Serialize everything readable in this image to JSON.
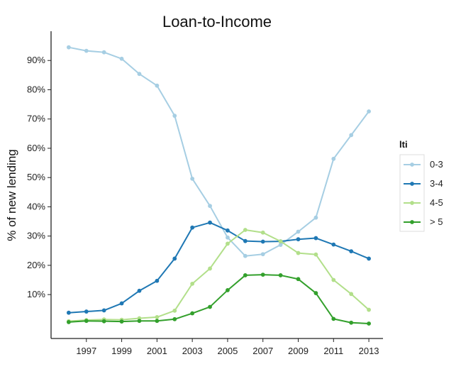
{
  "chart_data": {
    "type": "line",
    "title": "Loan-to-Income",
    "xlabel": "",
    "ylabel": "% of new lending",
    "x": [
      1996,
      1997,
      1998,
      1999,
      2000,
      2001,
      2002,
      2003,
      2004,
      2005,
      2006,
      2007,
      2008,
      2009,
      2010,
      2011,
      2012,
      2013
    ],
    "xlim": [
      1995,
      2013.8
    ],
    "ylim": [
      -5,
      100
    ],
    "x_ticks": [
      1997,
      1999,
      2001,
      2003,
      2005,
      2007,
      2009,
      2011,
      2013
    ],
    "x_tick_labels": [
      "1997",
      "1999",
      "2001",
      "2003",
      "2005",
      "2007",
      "2009",
      "2011",
      "2013"
    ],
    "y_ticks": [
      10,
      20,
      30,
      40,
      50,
      60,
      70,
      80,
      90
    ],
    "y_tick_labels": [
      "10%",
      "20%",
      "30%",
      "40%",
      "50%",
      "60%",
      "70%",
      "80%",
      "90%"
    ],
    "grid": false,
    "legend": {
      "title": "lti",
      "position": "right"
    },
    "series": [
      {
        "name": "0-3",
        "color": "#a6cee3",
        "values": [
          94.5,
          93.3,
          92.8,
          90.6,
          85.4,
          81.4,
          71.1,
          49.6,
          40.3,
          29.5,
          23.2,
          23.8,
          27.0,
          31.5,
          36.3,
          56.4,
          64.5,
          72.6
        ]
      },
      {
        "name": "3-4",
        "color": "#1f78b4",
        "values": [
          3.8,
          4.2,
          4.6,
          7.0,
          11.3,
          14.7,
          22.3,
          32.9,
          34.6,
          31.9,
          28.3,
          28.1,
          28.2,
          28.9,
          29.3,
          27.1,
          24.8,
          22.3
        ]
      },
      {
        "name": "4-5",
        "color": "#b2df8a",
        "values": [
          0.9,
          1.3,
          1.5,
          1.4,
          1.9,
          2.3,
          4.5,
          13.7,
          18.9,
          27.4,
          32.1,
          31.2,
          28.2,
          24.2,
          23.7,
          15.0,
          10.2,
          4.8
        ]
      },
      {
        "name": "> 5",
        "color": "#33a02c",
        "values": [
          0.6,
          1.0,
          0.9,
          0.8,
          1.0,
          1.0,
          1.6,
          3.6,
          5.8,
          11.5,
          16.6,
          16.8,
          16.6,
          15.3,
          10.5,
          1.7,
          0.4,
          0.1
        ]
      }
    ]
  }
}
